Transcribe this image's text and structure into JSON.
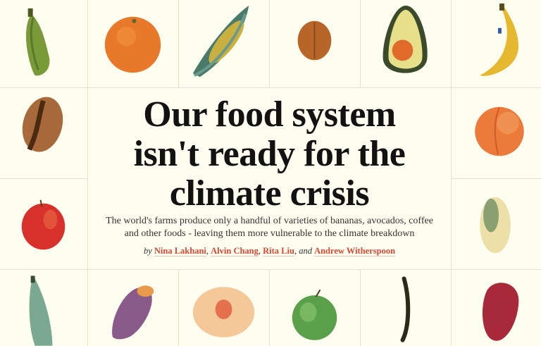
{
  "headline": {
    "line1": "Our food system",
    "line2": "isn't ready for the",
    "line3": "climate crisis"
  },
  "standfirst": {
    "line1": "The world's farms produce only a handful of varieties of bananas, avocados, coffee",
    "line2": "and other foods - leaving them more vulnerable to the climate breakdown"
  },
  "byline": {
    "prefix": "by",
    "authors": [
      "Nina Lakhani",
      "Alvin Chang",
      "Rita Liu",
      "Andrew Witherspoon"
    ],
    "sep": ",",
    "and": "and"
  },
  "colors": {
    "background": "#fdfdf0",
    "author_link": "#d84a35",
    "grid_line": "#e5e3cf"
  },
  "illustrations": [
    "plantain",
    "orange",
    "corn",
    "walnut",
    "avocado",
    "banana",
    "coffee-bean",
    "peach",
    "apple",
    "pistachio",
    "green-banana",
    "sweet-potato",
    "peach-half",
    "green-apple",
    "vanilla-pod",
    "red-potato"
  ]
}
